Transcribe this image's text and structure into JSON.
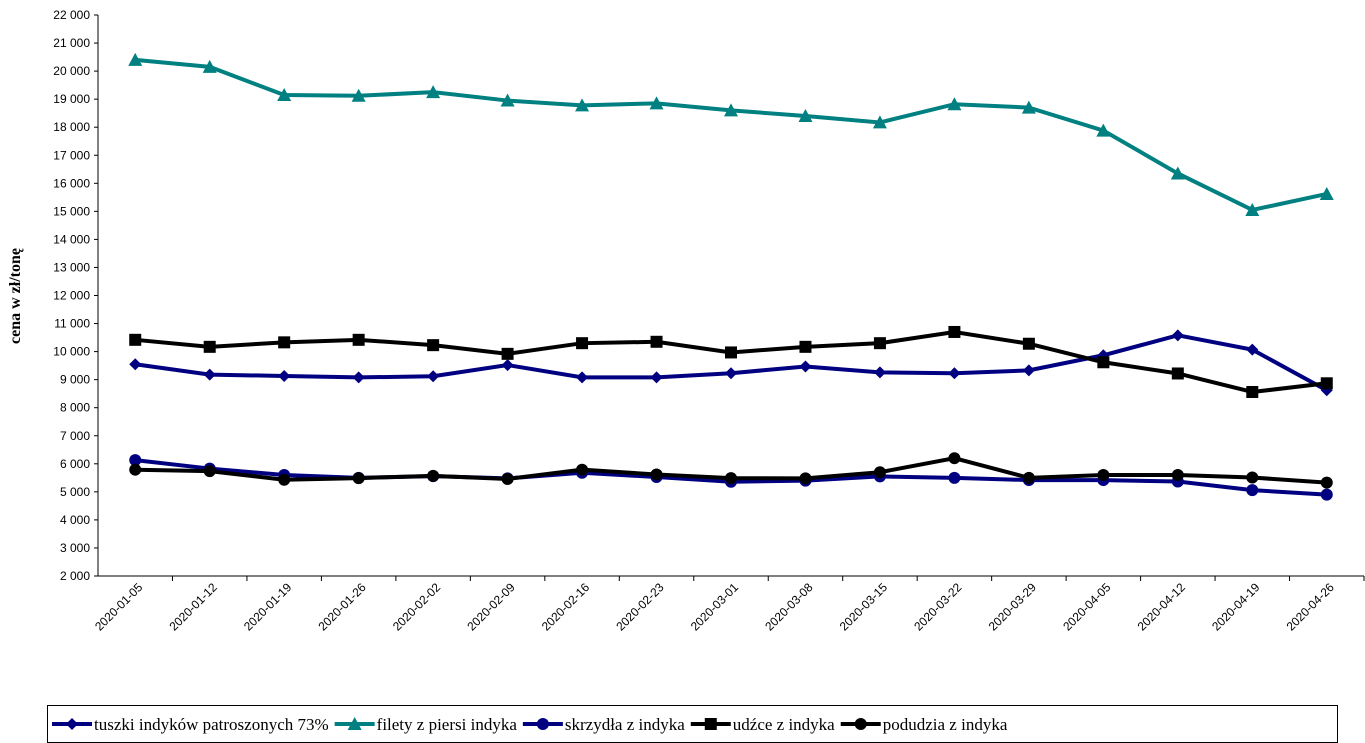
{
  "chart_data": {
    "type": "line",
    "y_label": "cena w zł/tonę",
    "categories": [
      "2020-01-05",
      "2020-01-12",
      "2020-01-19",
      "2020-01-26",
      "2020-02-02",
      "2020-02-09",
      "2020-02-16",
      "2020-02-23",
      "2020-03-01",
      "2020-03-08",
      "2020-03-15",
      "2020-03-22",
      "2020-03-29",
      "2020-04-05",
      "2020-04-12",
      "2020-04-19",
      "2020-04-26"
    ],
    "ylim": [
      2000,
      22000
    ],
    "yticks": [
      {
        "value": 2000,
        "label": "2 000"
      },
      {
        "value": 3000,
        "label": "3 000"
      },
      {
        "value": 4000,
        "label": "4 000"
      },
      {
        "value": 5000,
        "label": "5 000"
      },
      {
        "value": 6000,
        "label": "6 000"
      },
      {
        "value": 7000,
        "label": "7 000"
      },
      {
        "value": 8000,
        "label": "8 000"
      },
      {
        "value": 9000,
        "label": "9 000"
      },
      {
        "value": 10000,
        "label": "10 000"
      },
      {
        "value": 11000,
        "label": "11 000"
      },
      {
        "value": 12000,
        "label": "12 000"
      },
      {
        "value": 13000,
        "label": "13 000"
      },
      {
        "value": 14000,
        "label": "14 000"
      },
      {
        "value": 15000,
        "label": "15 000"
      },
      {
        "value": 16000,
        "label": "16 000"
      },
      {
        "value": 17000,
        "label": "17 000"
      },
      {
        "value": 18000,
        "label": "18 000"
      },
      {
        "value": 19000,
        "label": "19 000"
      },
      {
        "value": 20000,
        "label": "20 000"
      },
      {
        "value": 21000,
        "label": "21 000"
      },
      {
        "value": 22000,
        "label": "22 000"
      }
    ],
    "grid": false,
    "legend": "bottom",
    "series": [
      {
        "name": "tuszki indyków patroszonych 73%",
        "color": "#000080",
        "marker": "diamond",
        "values": [
          9550,
          9180,
          9130,
          9080,
          9120,
          9520,
          9080,
          9080,
          9230,
          9470,
          9260,
          9230,
          9330,
          9870,
          10580,
          10070,
          8620
        ]
      },
      {
        "name": "filety z piersi indyka",
        "color": "#008080",
        "marker": "triangle",
        "values": [
          20400,
          20150,
          19150,
          19120,
          19250,
          18950,
          18780,
          18850,
          18600,
          18400,
          18170,
          18820,
          18700,
          17880,
          16350,
          15050,
          15620
        ]
      },
      {
        "name": "skrzydła z indyka",
        "color": "#000080",
        "marker": "circle",
        "values": [
          6130,
          5830,
          5600,
          5500,
          5560,
          5480,
          5680,
          5530,
          5360,
          5400,
          5550,
          5500,
          5420,
          5420,
          5370,
          5060,
          4900
        ]
      },
      {
        "name": "udźce z indyka",
        "color": "#000000",
        "marker": "square",
        "values": [
          10420,
          10170,
          10330,
          10420,
          10230,
          9920,
          10300,
          10350,
          9970,
          10170,
          10300,
          10700,
          10280,
          9620,
          9220,
          8560,
          8870
        ]
      },
      {
        "name": "podudzia z indyka",
        "color": "#000000",
        "marker": "circle",
        "values": [
          5790,
          5740,
          5430,
          5490,
          5570,
          5460,
          5790,
          5620,
          5490,
          5480,
          5700,
          6200,
          5500,
          5600,
          5600,
          5510,
          5330
        ]
      }
    ]
  }
}
